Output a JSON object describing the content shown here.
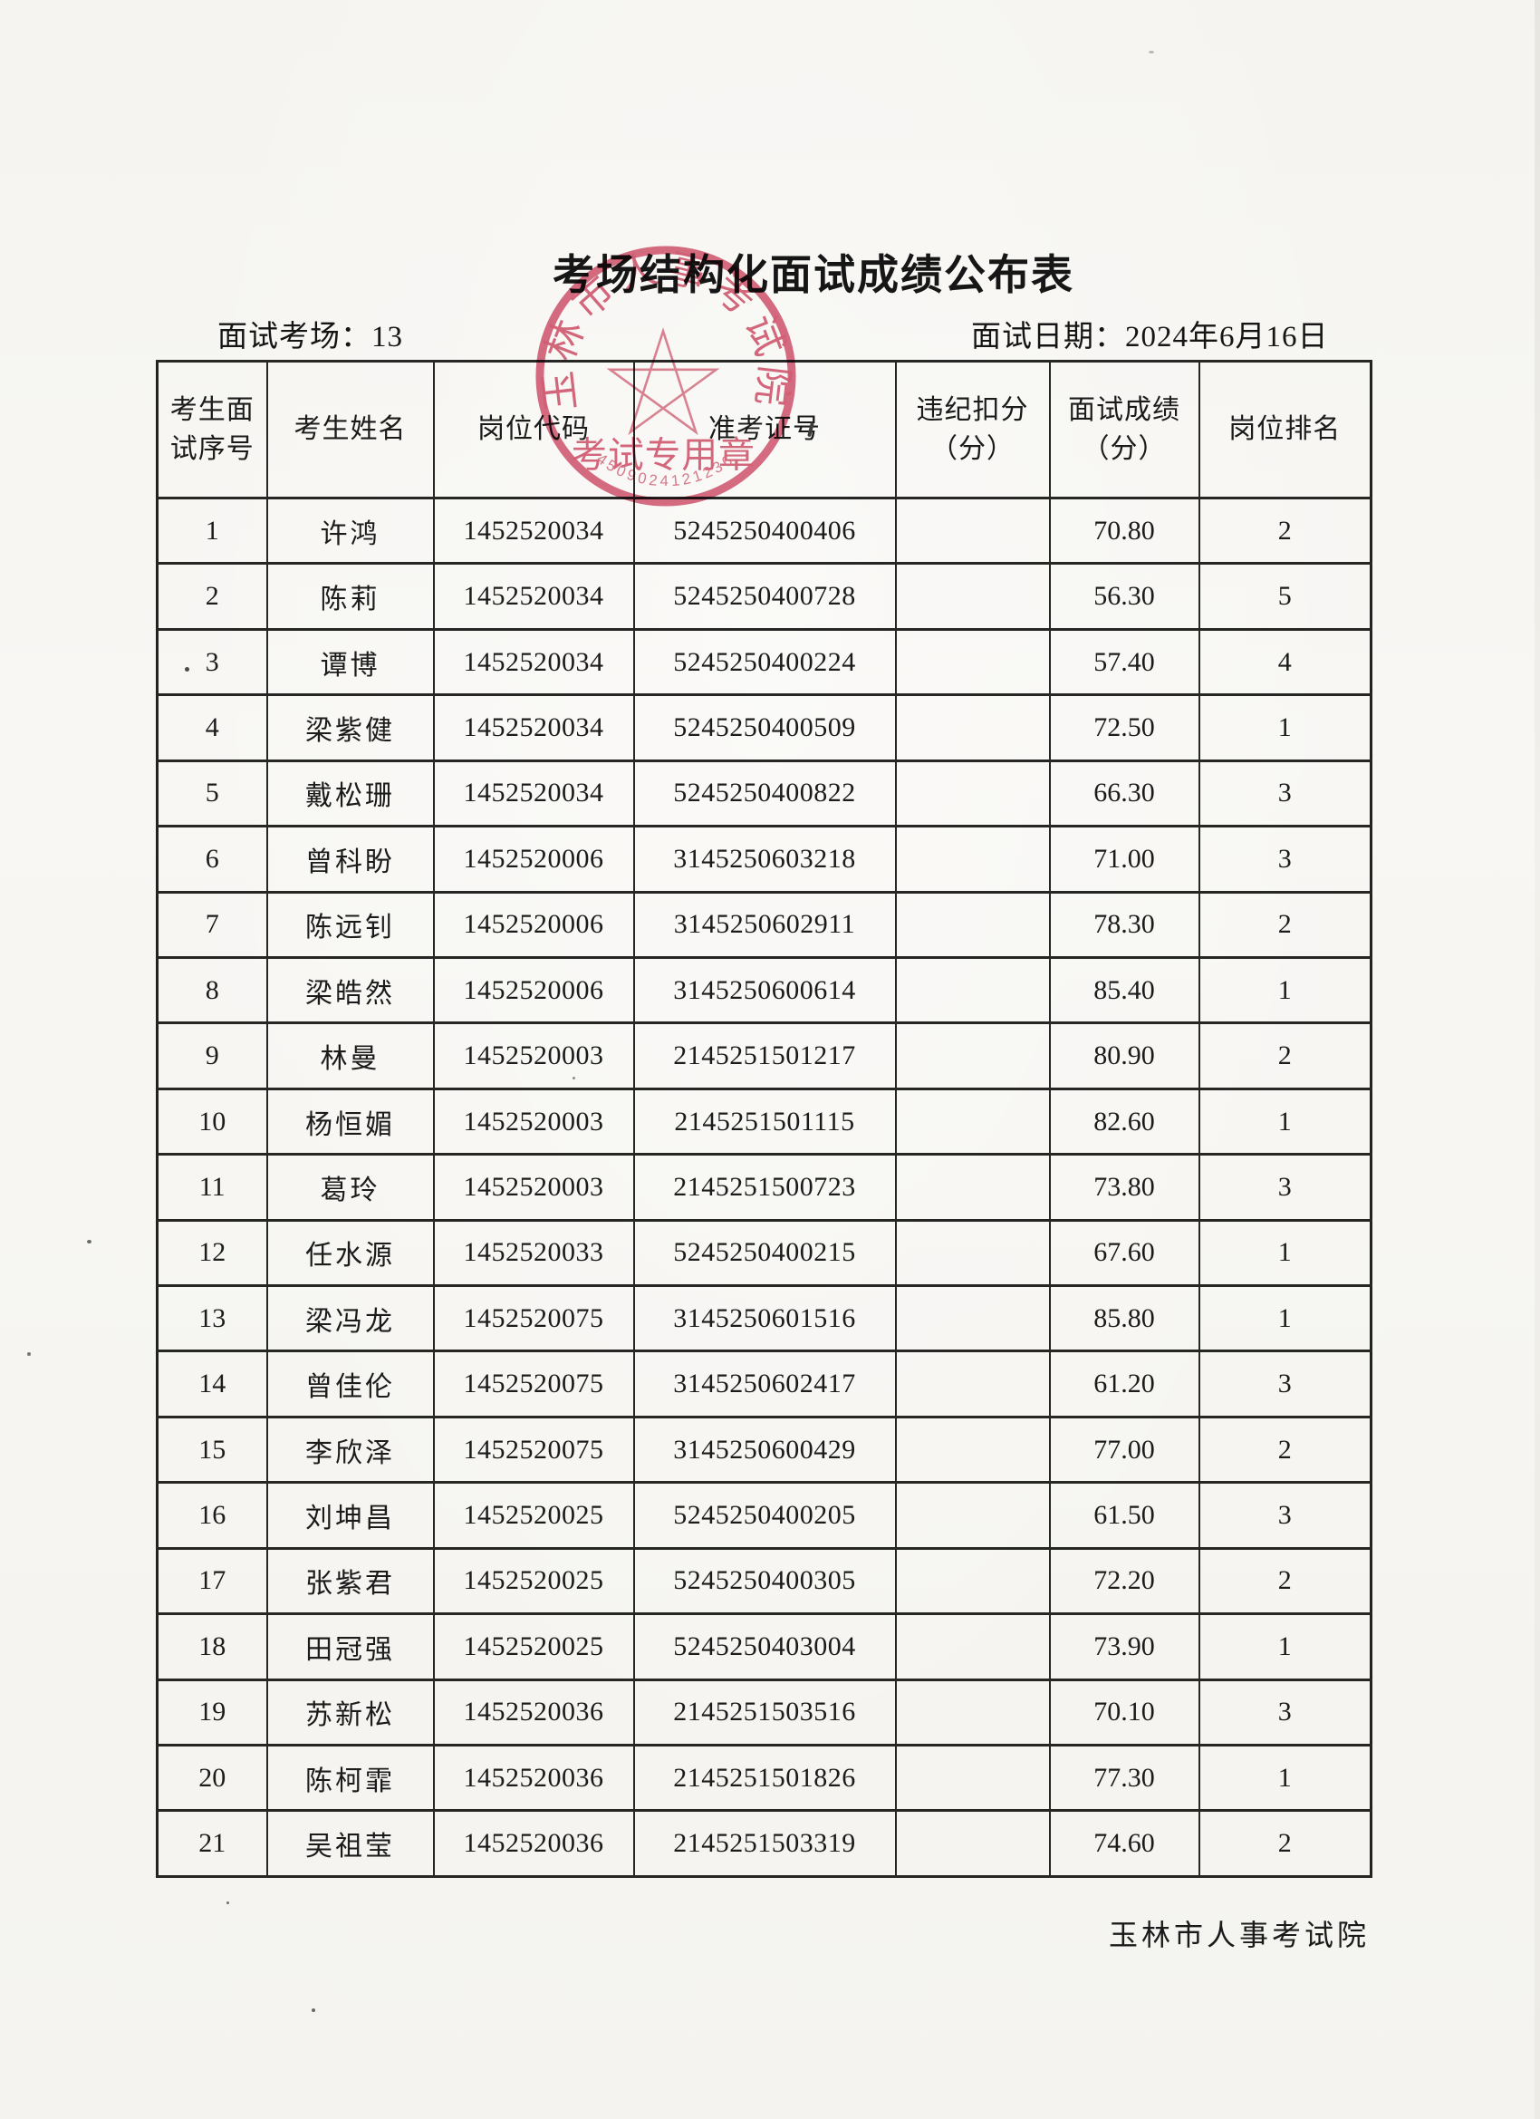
{
  "page": {
    "title": "考场结构化面试成绩公布表",
    "room_label": "面试考场：13",
    "date_label": "面试日期：2024年6月16日",
    "issuer": "玉林市人事考试院"
  },
  "stamp": {
    "arc_text": "玉林市人事考试院",
    "center_text": "考试专用章",
    "serial_number": "4509024121236",
    "ink_color": "#d04a66",
    "star_icon": "five-pointed-star"
  },
  "table": {
    "headers": [
      {
        "lines": [
          "考生面",
          "试序号"
        ]
      },
      {
        "lines": [
          "考生姓名"
        ]
      },
      {
        "lines": [
          "岗位代码"
        ]
      },
      {
        "lines": [
          "准考证号"
        ]
      },
      {
        "lines": [
          "违纪扣分",
          "（分）"
        ]
      },
      {
        "lines": [
          "面试成绩",
          "（分）"
        ]
      },
      {
        "lines": [
          "岗位排名"
        ]
      }
    ],
    "rows": [
      {
        "seq": "1",
        "name": "许鸿",
        "post_code": "1452520034",
        "ticket_no": "5245250400406",
        "deduction": "",
        "score": "70.80",
        "rank": "2"
      },
      {
        "seq": "2",
        "name": "陈莉",
        "post_code": "1452520034",
        "ticket_no": "5245250400728",
        "deduction": "",
        "score": "56.30",
        "rank": "5"
      },
      {
        "seq": "3",
        "name": "谭博",
        "post_code": "1452520034",
        "ticket_no": "5245250400224",
        "deduction": "",
        "score": "57.40",
        "rank": "4"
      },
      {
        "seq": "4",
        "name": "梁紫健",
        "post_code": "1452520034",
        "ticket_no": "5245250400509",
        "deduction": "",
        "score": "72.50",
        "rank": "1"
      },
      {
        "seq": "5",
        "name": "戴松珊",
        "post_code": "1452520034",
        "ticket_no": "5245250400822",
        "deduction": "",
        "score": "66.30",
        "rank": "3"
      },
      {
        "seq": "6",
        "name": "曾科盼",
        "post_code": "1452520006",
        "ticket_no": "3145250603218",
        "deduction": "",
        "score": "71.00",
        "rank": "3"
      },
      {
        "seq": "7",
        "name": "陈远钊",
        "post_code": "1452520006",
        "ticket_no": "3145250602911",
        "deduction": "",
        "score": "78.30",
        "rank": "2"
      },
      {
        "seq": "8",
        "name": "梁皓然",
        "post_code": "1452520006",
        "ticket_no": "3145250600614",
        "deduction": "",
        "score": "85.40",
        "rank": "1"
      },
      {
        "seq": "9",
        "name": "林曼",
        "post_code": "1452520003",
        "ticket_no": "2145251501217",
        "deduction": "",
        "score": "80.90",
        "rank": "2"
      },
      {
        "seq": "10",
        "name": "杨恒媚",
        "post_code": "1452520003",
        "ticket_no": "2145251501115",
        "deduction": "",
        "score": "82.60",
        "rank": "1"
      },
      {
        "seq": "11",
        "name": "葛玲",
        "post_code": "1452520003",
        "ticket_no": "2145251500723",
        "deduction": "",
        "score": "73.80",
        "rank": "3"
      },
      {
        "seq": "12",
        "name": "任水源",
        "post_code": "1452520033",
        "ticket_no": "5245250400215",
        "deduction": "",
        "score": "67.60",
        "rank": "1"
      },
      {
        "seq": "13",
        "name": "梁冯龙",
        "post_code": "1452520075",
        "ticket_no": "3145250601516",
        "deduction": "",
        "score": "85.80",
        "rank": "1"
      },
      {
        "seq": "14",
        "name": "曾佳伦",
        "post_code": "1452520075",
        "ticket_no": "3145250602417",
        "deduction": "",
        "score": "61.20",
        "rank": "3"
      },
      {
        "seq": "15",
        "name": "李欣泽",
        "post_code": "1452520075",
        "ticket_no": "3145250600429",
        "deduction": "",
        "score": "77.00",
        "rank": "2"
      },
      {
        "seq": "16",
        "name": "刘坤昌",
        "post_code": "1452520025",
        "ticket_no": "5245250400205",
        "deduction": "",
        "score": "61.50",
        "rank": "3"
      },
      {
        "seq": "17",
        "name": "张紫君",
        "post_code": "1452520025",
        "ticket_no": "5245250400305",
        "deduction": "",
        "score": "72.20",
        "rank": "2"
      },
      {
        "seq": "18",
        "name": "田冠强",
        "post_code": "1452520025",
        "ticket_no": "5245250403004",
        "deduction": "",
        "score": "73.90",
        "rank": "1"
      },
      {
        "seq": "19",
        "name": "苏新松",
        "post_code": "1452520036",
        "ticket_no": "2145251503516",
        "deduction": "",
        "score": "70.10",
        "rank": "3"
      },
      {
        "seq": "20",
        "name": "陈柯霏",
        "post_code": "1452520036",
        "ticket_no": "2145251501826",
        "deduction": "",
        "score": "77.30",
        "rank": "1"
      },
      {
        "seq": "21",
        "name": "吴祖莹",
        "post_code": "1452520036",
        "ticket_no": "2145251503319",
        "deduction": "",
        "score": "74.60",
        "rank": "2"
      }
    ]
  }
}
